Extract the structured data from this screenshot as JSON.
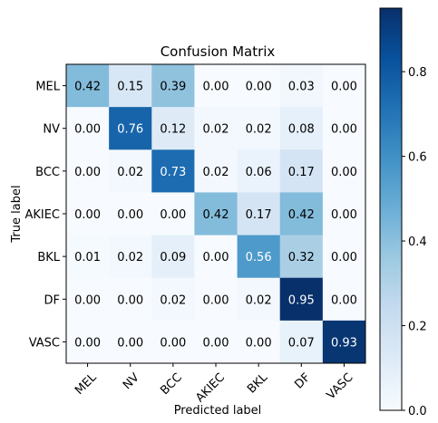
{
  "chart_data": {
    "type": "heatmap",
    "title": "Confusion Matrix",
    "xlabel": "Predicted label",
    "ylabel": "True label",
    "x_categories": [
      "MEL",
      "NV",
      "BCC",
      "AKIEC",
      "BKL",
      "DF",
      "VASC"
    ],
    "y_categories": [
      "MEL",
      "NV",
      "BCC",
      "AKIEC",
      "BKL",
      "DF",
      "VASC"
    ],
    "values": [
      [
        0.42,
        0.15,
        0.39,
        0.0,
        0.0,
        0.03,
        0.0
      ],
      [
        0.0,
        0.76,
        0.12,
        0.02,
        0.02,
        0.08,
        0.0
      ],
      [
        0.0,
        0.02,
        0.73,
        0.02,
        0.06,
        0.17,
        0.0
      ],
      [
        0.0,
        0.0,
        0.0,
        0.42,
        0.17,
        0.42,
        0.0
      ],
      [
        0.01,
        0.02,
        0.09,
        0.0,
        0.56,
        0.32,
        0.0
      ],
      [
        0.0,
        0.0,
        0.02,
        0.0,
        0.02,
        0.95,
        0.0
      ],
      [
        0.0,
        0.0,
        0.0,
        0.0,
        0.0,
        0.07,
        0.93
      ]
    ],
    "value_format": "0.00",
    "colormap": "Blues",
    "colormap_stops": [
      "#f7fbff",
      "#deebf7",
      "#c6dbef",
      "#9ecae1",
      "#6baed6",
      "#4292c6",
      "#2171b5",
      "#08519c",
      "#08306b"
    ],
    "vlim": [
      0,
      0.95
    ],
    "colorbar_ticks": [
      "0.0",
      "0.2",
      "0.4",
      "0.6",
      "0.8"
    ],
    "colorbar_tick_values": [
      0.0,
      0.2,
      0.4,
      0.6,
      0.8
    ],
    "xtick_rotation_deg": 45,
    "grid": false
  }
}
